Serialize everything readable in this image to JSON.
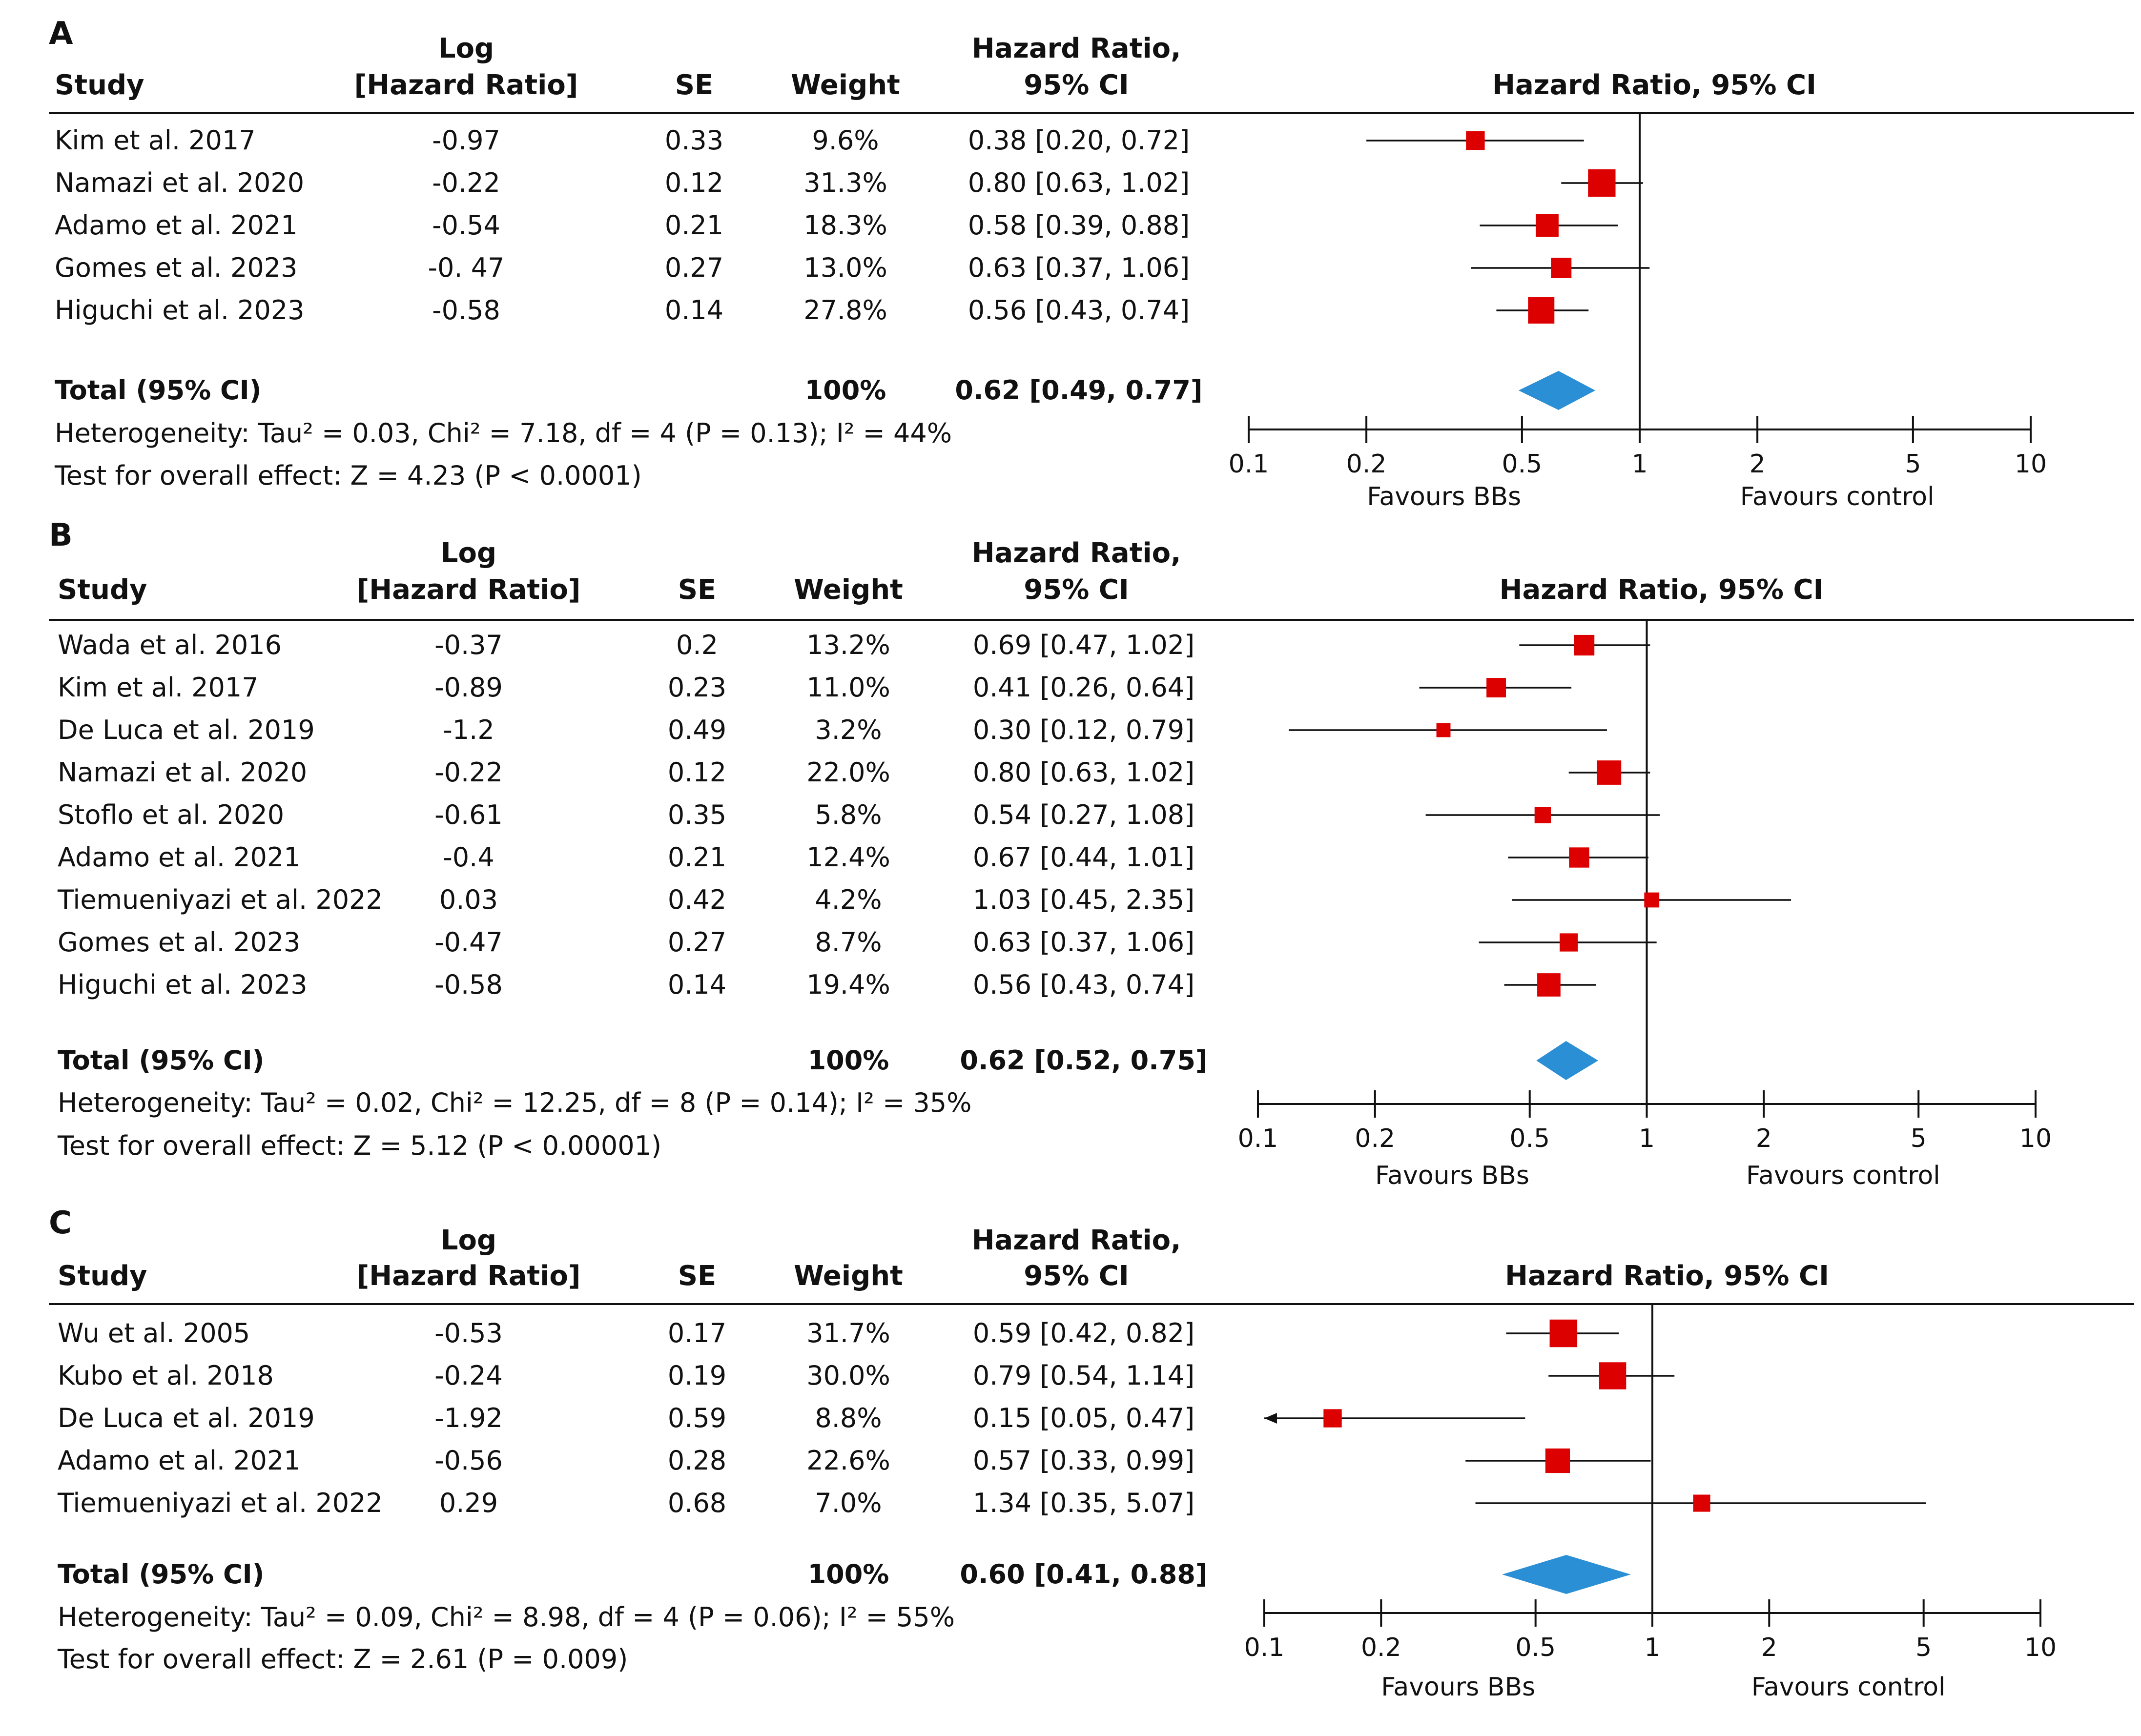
{
  "colors": {
    "marker": "#dd0000",
    "diamond": "#2b8fd6",
    "line": "#111111"
  },
  "headers": {
    "study": "Study",
    "log_line1": "Log",
    "log_line2": "[Hazard Ratio]",
    "se": "SE",
    "weight": "Weight",
    "hr_line1": "Hazard Ratio,",
    "hr_line2": "95% CI",
    "plot": "Hazard Ratio, 95% CI"
  },
  "axis": {
    "ticks": [
      "0.1",
      "0.2",
      "0.5",
      "1",
      "2",
      "5",
      "10"
    ],
    "left_label": "Favours BBs",
    "right_label": "Favours control"
  },
  "chart_data": [
    {
      "type": "forest",
      "label": "A",
      "scale": "log",
      "xlim": [
        0.1,
        10
      ],
      "xticks": [
        0.1,
        0.2,
        0.5,
        1,
        2,
        5,
        10
      ],
      "xlabel_left": "Favours BBs",
      "xlabel_right": "Favours control",
      "studies": [
        {
          "study": "Kim et al. 2017",
          "loghr": "-0.97",
          "se": "0.33",
          "weight": "9.6%",
          "hr_text": "0.38 [0.20, 0.72]",
          "hr": 0.38,
          "lo": 0.2,
          "hi": 0.72,
          "w": 9.6
        },
        {
          "study": "Namazi et al. 2020",
          "loghr": "-0.22",
          "se": "0.12",
          "weight": "31.3%",
          "hr_text": "0.80 [0.63, 1.02]",
          "hr": 0.8,
          "lo": 0.63,
          "hi": 1.02,
          "w": 31.3
        },
        {
          "study": "Adamo et al. 2021",
          "loghr": "-0.54",
          "se": "0.21",
          "weight": "18.3%",
          "hr_text": "0.58 [0.39, 0.88]",
          "hr": 0.58,
          "lo": 0.39,
          "hi": 0.88,
          "w": 18.3
        },
        {
          "study": "Gomes et al. 2023",
          "loghr": "-0. 47",
          "se": "0.27",
          "weight": "13.0%",
          "hr_text": "0.63 [0.37, 1.06]",
          "hr": 0.63,
          "lo": 0.37,
          "hi": 1.06,
          "w": 13.0
        },
        {
          "study": "Higuchi et al. 2023",
          "loghr": "-0.58",
          "se": "0.14",
          "weight": "27.8%",
          "hr_text": "0.56 [0.43, 0.74]",
          "hr": 0.56,
          "lo": 0.43,
          "hi": 0.74,
          "w": 27.8
        }
      ],
      "total": {
        "label": "Total (95% CI)",
        "weight": "100%",
        "hr_text": "0.62 [0.49, 0.77]",
        "hr": 0.62,
        "lo": 0.49,
        "hi": 0.77
      },
      "heterogeneity": "Heterogeneity: Tau² = 0.03, Chi² = 7.18, df = 4 (P = 0.13); I² = 44%",
      "overall": "Test for overall effect: Z = 4.23 (P < 0.0001)"
    },
    {
      "type": "forest",
      "label": "B",
      "scale": "log",
      "xlim": [
        0.1,
        10
      ],
      "xticks": [
        0.1,
        0.2,
        0.5,
        1,
        2,
        5,
        10
      ],
      "xlabel_left": "Favours BBs",
      "xlabel_right": "Favours control",
      "studies": [
        {
          "study": "Wada et al. 2016",
          "loghr": "-0.37",
          "se": "0.2",
          "weight": "13.2%",
          "hr_text": "0.69 [0.47, 1.02]",
          "hr": 0.69,
          "lo": 0.47,
          "hi": 1.02,
          "w": 13.2
        },
        {
          "study": "Kim et al. 2017",
          "loghr": "-0.89",
          "se": "0.23",
          "weight": "11.0%",
          "hr_text": "0.41 [0.26, 0.64]",
          "hr": 0.41,
          "lo": 0.26,
          "hi": 0.64,
          "w": 11.0
        },
        {
          "study": "De Luca et al. 2019",
          "loghr": "-1.2",
          "se": "0.49",
          "weight": "3.2%",
          "hr_text": "0.30 [0.12, 0.79]",
          "hr": 0.3,
          "lo": 0.12,
          "hi": 0.79,
          "w": 3.2
        },
        {
          "study": "Namazi et al. 2020",
          "loghr": "-0.22",
          "se": "0.12",
          "weight": "22.0%",
          "hr_text": "0.80 [0.63, 1.02]",
          "hr": 0.8,
          "lo": 0.63,
          "hi": 1.02,
          "w": 22.0
        },
        {
          "study": "Stoflo et al. 2020",
          "loghr": "-0.61",
          "se": "0.35",
          "weight": "5.8%",
          "hr_text": "0.54 [0.27, 1.08]",
          "hr": 0.54,
          "lo": 0.27,
          "hi": 1.08,
          "w": 5.8
        },
        {
          "study": "Adamo et al. 2021",
          "loghr": "-0.4",
          "se": "0.21",
          "weight": "12.4%",
          "hr_text": "0.67 [0.44, 1.01]",
          "hr": 0.67,
          "lo": 0.44,
          "hi": 1.01,
          "w": 12.4
        },
        {
          "study": "Tiemueniyazi et al. 2022",
          "loghr": "0.03",
          "se": "0.42",
          "weight": "4.2%",
          "hr_text": "1.03 [0.45, 2.35]",
          "hr": 1.03,
          "lo": 0.45,
          "hi": 2.35,
          "w": 4.2
        },
        {
          "study": "Gomes et al. 2023",
          "loghr": "-0.47",
          "se": "0.27",
          "weight": "8.7%",
          "hr_text": "0.63 [0.37, 1.06]",
          "hr": 0.63,
          "lo": 0.37,
          "hi": 1.06,
          "w": 8.7
        },
        {
          "study": "Higuchi et al. 2023",
          "loghr": "-0.58",
          "se": "0.14",
          "weight": "19.4%",
          "hr_text": "0.56 [0.43, 0.74]",
          "hr": 0.56,
          "lo": 0.43,
          "hi": 0.74,
          "w": 19.4
        }
      ],
      "total": {
        "label": "Total (95% CI)",
        "weight": "100%",
        "hr_text": "0.62 [0.52, 0.75]",
        "hr": 0.62,
        "lo": 0.52,
        "hi": 0.75
      },
      "heterogeneity": "Heterogeneity: Tau² = 0.02, Chi² = 12.25, df = 8 (P = 0.14); I² = 35%",
      "overall": "Test for overall effect: Z = 5.12 (P < 0.00001)"
    },
    {
      "type": "forest",
      "label": "C",
      "scale": "log",
      "xlim": [
        0.1,
        10
      ],
      "xticks": [
        0.1,
        0.2,
        0.5,
        1,
        2,
        5,
        10
      ],
      "xlabel_left": "Favours BBs",
      "xlabel_right": "Favours control",
      "studies": [
        {
          "study": "Wu et al. 2005",
          "loghr": "-0.53",
          "se": "0.17",
          "weight": "31.7%",
          "hr_text": "0.59 [0.42, 0.82]",
          "hr": 0.59,
          "lo": 0.42,
          "hi": 0.82,
          "w": 31.7
        },
        {
          "study": "Kubo et al. 2018",
          "loghr": "-0.24",
          "se": "0.19",
          "weight": "30.0%",
          "hr_text": "0.79 [0.54, 1.14]",
          "hr": 0.79,
          "lo": 0.54,
          "hi": 1.14,
          "w": 30.0
        },
        {
          "study": "De Luca et al. 2019",
          "loghr": "-1.92",
          "se": "0.59",
          "weight": "8.8%",
          "hr_text": "0.15 [0.05, 0.47]",
          "hr": 0.15,
          "lo": 0.05,
          "hi": 0.47,
          "w": 8.8
        },
        {
          "study": "Adamo et al. 2021",
          "loghr": "-0.56",
          "se": "0.28",
          "weight": "22.6%",
          "hr_text": "0.57 [0.33, 0.99]",
          "hr": 0.57,
          "lo": 0.33,
          "hi": 0.99,
          "w": 22.6
        },
        {
          "study": "Tiemueniyazi et al. 2022",
          "loghr": "0.29",
          "se": "0.68",
          "weight": "7.0%",
          "hr_text": "1.34 [0.35, 5.07]",
          "hr": 1.34,
          "lo": 0.35,
          "hi": 5.07,
          "w": 7.0
        }
      ],
      "total": {
        "label": "Total (95% CI)",
        "weight": "100%",
        "hr_text": "0.60 [0.41, 0.88]",
        "hr": 0.6,
        "lo": 0.41,
        "hi": 0.88
      },
      "heterogeneity": "Heterogeneity: Tau² = 0.09, Chi² = 8.98, df = 4 (P = 0.06); I² = 55%",
      "overall": "Test for overall effect: Z = 2.61 (P = 0.009)"
    }
  ]
}
